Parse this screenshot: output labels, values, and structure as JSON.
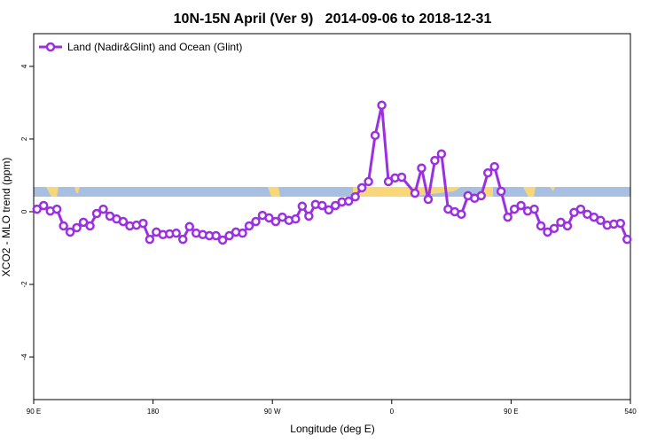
{
  "chart_data": {
    "type": "line",
    "title": "10N-15N April (Ver 9)   2014-09-06 to 2018-12-31",
    "x_label": "Longitude (deg E)",
    "y_label": "XCO2 - MLO trend (ppm)",
    "x": [
      92.5,
      97.5,
      102.5,
      107.5,
      112.5,
      117.5,
      122.5,
      127.5,
      132.5,
      137.5,
      142.5,
      147.5,
      152.5,
      157.5,
      162.5,
      167.5,
      172.5,
      177.5,
      182.5,
      187.5,
      192.5,
      197.5,
      202.5,
      207.5,
      212.5,
      217.5,
      222.5,
      227.5,
      232.5,
      237.5,
      242.5,
      247.5,
      252.5,
      257.5,
      262.5,
      267.5,
      272.5,
      277.5,
      282.5,
      287.5,
      292.5,
      297.5,
      302.5,
      307.5,
      312.5,
      317.5,
      322.5,
      327.5,
      332.5,
      337.5,
      342.5,
      347.5,
      352.5,
      357.5,
      362.5,
      367.5,
      377.5,
      382.5,
      387.5,
      392.5,
      397.5,
      402.5,
      407.5,
      412.5,
      417.5,
      422.5,
      427.5,
      432.5,
      437.5,
      442.5,
      447.5,
      452.5,
      457.5,
      462.5,
      467.5,
      472.5,
      477.5,
      482.5,
      487.5,
      492.5,
      497.5,
      502.5,
      507.5,
      512.5,
      517.5,
      522.5,
      527.5,
      532.5,
      537.5
    ],
    "series": [
      {
        "name": "Land (Nadir&Glint) and Ocean (Glint)",
        "color": "#9b30e0",
        "values": [
          0.07,
          0.17,
          0.02,
          0.07,
          -0.39,
          -0.56,
          -0.44,
          -0.29,
          -0.39,
          -0.05,
          0.07,
          -0.12,
          -0.2,
          -0.27,
          -0.39,
          -0.37,
          -0.32,
          -0.76,
          -0.56,
          -0.63,
          -0.61,
          -0.59,
          -0.76,
          -0.41,
          -0.59,
          -0.63,
          -0.66,
          -0.66,
          -0.78,
          -0.66,
          -0.56,
          -0.59,
          -0.39,
          -0.27,
          -0.1,
          -0.17,
          -0.27,
          -0.15,
          -0.24,
          -0.2,
          0.15,
          -0.12,
          0.2,
          0.17,
          0.05,
          0.17,
          0.27,
          0.29,
          0.41,
          0.66,
          0.83,
          2.1,
          2.93,
          0.83,
          0.93,
          0.95,
          0.51,
          1.2,
          0.34,
          1.41,
          1.59,
          0.07,
          0,
          -0.07,
          0.44,
          0.37,
          0.44,
          1.07,
          1.24,
          0.56,
          -0.15,
          0.07,
          0.17,
          0.02,
          0.07,
          -0.39,
          -0.56,
          -0.46,
          -0.29,
          -0.39,
          -0.02,
          0.07,
          -0.07,
          -0.15,
          -0.24,
          -0.37,
          -0.34,
          -0.32,
          -0.76
        ]
      }
    ],
    "xlim": [
      90,
      540
    ],
    "xticks": [
      {
        "value": 90,
        "label": "90 E"
      },
      180,
      {
        "value": 270,
        "label": "90 W"
      },
      {
        "value": 360,
        "label": "0"
      },
      {
        "value": 450,
        "label": "90 E"
      },
      540
    ],
    "ylim": [
      -5.17,
      4.9
    ],
    "yticks": [
      -4,
      -2,
      0,
      2,
      4
    ],
    "legend": "top-left"
  }
}
